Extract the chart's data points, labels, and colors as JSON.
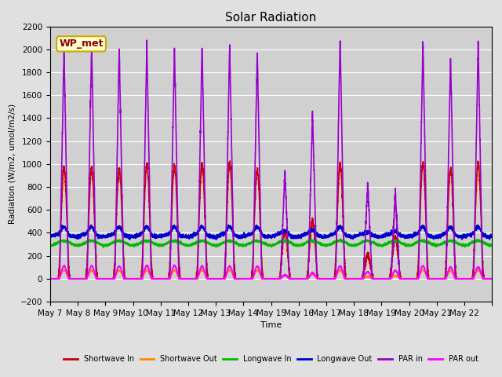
{
  "title": "Solar Radiation",
  "ylabel": "Radiation (W/m2, umol/m2/s)",
  "xlabel": "Time",
  "ylim": [
    -200,
    2200
  ],
  "background_color": "#e0e0e0",
  "plot_bg_color": "#d0d0d0",
  "annotation_label": "WP_met",
  "annotation_bg": "#ffffcc",
  "annotation_border": "#ccaa00",
  "x_tick_labels": [
    "May 7",
    "May 8",
    "May 9",
    "May 10",
    "May 11",
    "May 12",
    "May 13",
    "May 14",
    "May 15",
    "May 16",
    "May 17",
    "May 18",
    "May 19",
    "May 20",
    "May 21",
    "May 22"
  ],
  "num_days": 16,
  "series": {
    "shortwave_in": {
      "color": "#cc0000",
      "label": "Shortwave In",
      "lw": 1.2
    },
    "shortwave_out": {
      "color": "#ff8800",
      "label": "Shortwave Out",
      "lw": 1.2
    },
    "longwave_in": {
      "color": "#00bb00",
      "label": "Longwave In",
      "lw": 1.2
    },
    "longwave_out": {
      "color": "#0000cc",
      "label": "Longwave Out",
      "lw": 1.2
    },
    "par_in": {
      "color": "#9900cc",
      "label": "PAR in",
      "lw": 1.2
    },
    "par_out": {
      "color": "#ff00ff",
      "label": "PAR out",
      "lw": 1.2
    }
  },
  "grid_color": "#ffffff",
  "yticks": [
    -200,
    0,
    200,
    400,
    600,
    800,
    1000,
    1200,
    1400,
    1600,
    1800,
    2000,
    2200
  ],
  "sw_in_peaks": [
    970,
    960,
    960,
    990,
    980,
    1000,
    1010,
    950,
    400,
    500,
    1000,
    200,
    350,
    1010,
    950,
    1000
  ],
  "par_in_peaks": [
    2000,
    2050,
    2020,
    2050,
    2020,
    2040,
    2050,
    2000,
    940,
    1450,
    2120,
    830,
    760,
    2080,
    1950,
    2050
  ],
  "par_out_peaks": [
    110,
    110,
    110,
    115,
    115,
    110,
    110,
    110,
    30,
    50,
    110,
    60,
    70,
    110,
    100,
    100
  ]
}
